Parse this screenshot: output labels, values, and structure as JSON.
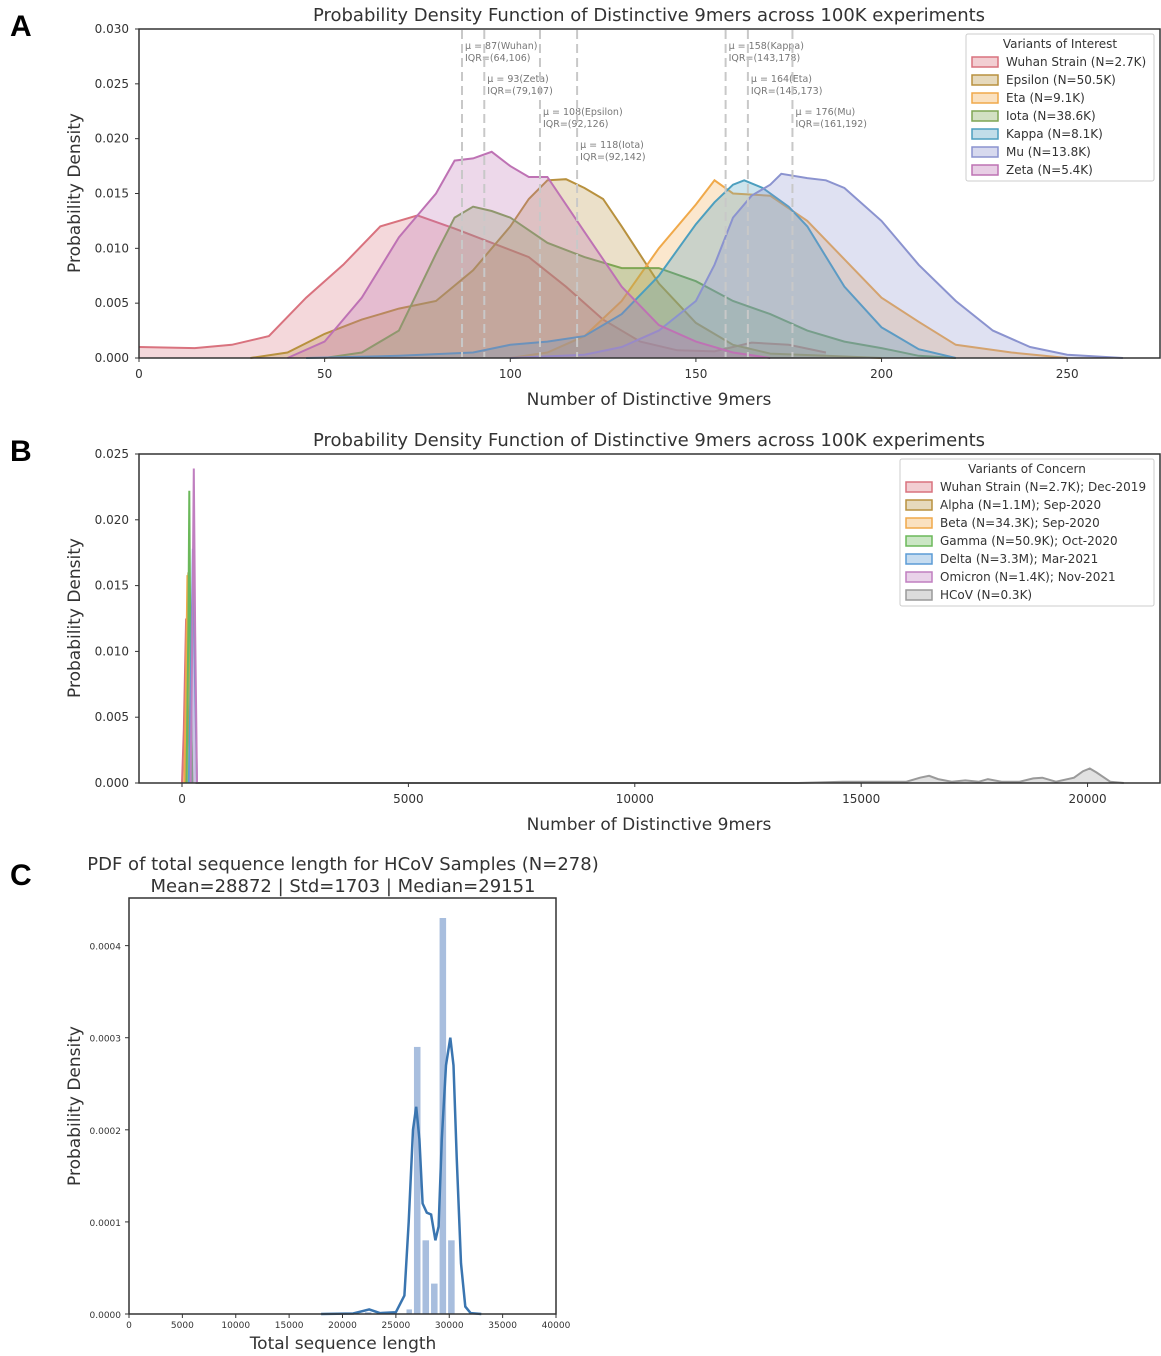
{
  "panels": [
    {
      "letter": "A"
    },
    {
      "letter": "B"
    },
    {
      "letter": "C"
    }
  ],
  "chart_data": [
    {
      "type": "area",
      "title": "Probability Density Function of Distinctive 9mers across 100K experiments",
      "xlabel": "Number of Distinctive 9mers",
      "ylabel": "Probability Density",
      "xlim": [
        0,
        275
      ],
      "ylim": [
        0,
        0.03
      ],
      "xticks": [
        0,
        50,
        100,
        150,
        200,
        250
      ],
      "yticks": [
        "0.000",
        "0.005",
        "0.010",
        "0.015",
        "0.020",
        "0.025",
        "0.030"
      ],
      "grid": false,
      "legend": {
        "title": "Variants of Interest",
        "position": "top-right",
        "entries": [
          {
            "label": "Wuhan Strain (N=2.7K)",
            "color": "#d9727e"
          },
          {
            "label": "Epsilon (N=50.5K)",
            "color": "#b8913e"
          },
          {
            "label": "Eta (N=9.1K)",
            "color": "#f0a94a"
          },
          {
            "label": "Iota (N=38.6K)",
            "color": "#7fa654"
          },
          {
            "label": "Kappa (N=8.1K)",
            "color": "#4c9fbf"
          },
          {
            "label": "Mu (N=13.8K)",
            "color": "#8b93cf"
          },
          {
            "label": "Zeta (N=5.4K)",
            "color": "#be72b4"
          }
        ]
      },
      "series": [
        {
          "label_ref": 0,
          "color": "#d9727e",
          "x": [
            0,
            15,
            25,
            35,
            45,
            55,
            65,
            75,
            85,
            95,
            105,
            115,
            125,
            135,
            145,
            155,
            165,
            175,
            185
          ],
          "y": [
            0.001,
            0.0009,
            0.0012,
            0.002,
            0.0055,
            0.0085,
            0.012,
            0.013,
            0.0118,
            0.0105,
            0.0092,
            0.0065,
            0.0035,
            0.0015,
            0.0007,
            0.0006,
            0.0014,
            0.0012,
            0.0005
          ]
        },
        {
          "label_ref": 1,
          "color": "#b8913e",
          "x": [
            30,
            40,
            50,
            60,
            70,
            80,
            90,
            100,
            105,
            110,
            115,
            120,
            125,
            130,
            140,
            150,
            160,
            170,
            185,
            200
          ],
          "y": [
            0,
            0.0005,
            0.0022,
            0.0035,
            0.0045,
            0.0052,
            0.008,
            0.012,
            0.0145,
            0.0162,
            0.0163,
            0.0155,
            0.0145,
            0.012,
            0.0068,
            0.0032,
            0.0012,
            0.0004,
            0.0002,
            0
          ]
        },
        {
          "label_ref": 2,
          "color": "#f0a94a",
          "x": [
            100,
            110,
            120,
            130,
            140,
            150,
            155,
            160,
            170,
            180,
            190,
            200,
            210,
            220,
            235,
            250
          ],
          "y": [
            0,
            0.0005,
            0.002,
            0.0052,
            0.01,
            0.014,
            0.0162,
            0.015,
            0.0148,
            0.0125,
            0.009,
            0.0055,
            0.0033,
            0.0012,
            0.0005,
            0
          ]
        },
        {
          "label_ref": 3,
          "color": "#7fa654",
          "x": [
            50,
            60,
            70,
            80,
            85,
            90,
            95,
            100,
            110,
            120,
            130,
            140,
            150,
            160,
            170,
            180,
            190,
            200,
            210,
            220
          ],
          "y": [
            0,
            0.0005,
            0.0025,
            0.0095,
            0.0128,
            0.0138,
            0.0134,
            0.0128,
            0.0105,
            0.0092,
            0.0082,
            0.0082,
            0.007,
            0.0052,
            0.004,
            0.0025,
            0.0015,
            0.0009,
            0.0002,
            0
          ]
        },
        {
          "label_ref": 4,
          "color": "#4c9fbf",
          "x": [
            45,
            70,
            90,
            100,
            110,
            120,
            130,
            140,
            150,
            155,
            160,
            163,
            168,
            175,
            180,
            190,
            200,
            210,
            220
          ],
          "y": [
            0,
            0.0002,
            0.0005,
            0.0012,
            0.0015,
            0.002,
            0.004,
            0.0075,
            0.0122,
            0.0142,
            0.0158,
            0.0162,
            0.0155,
            0.0138,
            0.012,
            0.0065,
            0.0028,
            0.0008,
            0
          ]
        },
        {
          "label_ref": 5,
          "color": "#8b93cf",
          "x": [
            100,
            120,
            130,
            140,
            150,
            155,
            160,
            165,
            170,
            173,
            180,
            185,
            190,
            200,
            210,
            220,
            230,
            240,
            250,
            265
          ],
          "y": [
            0,
            0.0003,
            0.001,
            0.0025,
            0.0052,
            0.0085,
            0.0128,
            0.0148,
            0.0158,
            0.0168,
            0.0164,
            0.0162,
            0.0155,
            0.0125,
            0.0085,
            0.0052,
            0.0025,
            0.001,
            0.0003,
            0
          ]
        },
        {
          "label_ref": 6,
          "color": "#be72b4",
          "x": [
            40,
            50,
            60,
            70,
            75,
            80,
            85,
            90,
            95,
            100,
            105,
            110,
            120,
            130,
            140,
            150,
            160,
            170
          ],
          "y": [
            0,
            0.0015,
            0.0055,
            0.011,
            0.013,
            0.015,
            0.018,
            0.0182,
            0.0188,
            0.0175,
            0.0165,
            0.0165,
            0.0115,
            0.0065,
            0.003,
            0.0015,
            0.0005,
            0
          ]
        }
      ],
      "annotations": [
        {
          "x": 87,
          "mean_text": "μ = 87(Wuhan)",
          "iqr_text": "IQR=(64,106)",
          "row": 0
        },
        {
          "x": 93,
          "mean_text": "μ = 93(Zeta)",
          "iqr_text": "IQR=(79,107)",
          "row": 1
        },
        {
          "x": 108,
          "mean_text": "μ = 108(Epsilon)",
          "iqr_text": "IQR=(92,126)",
          "row": 2
        },
        {
          "x": 118,
          "mean_text": "μ = 118(Iota)",
          "iqr_text": "IQR=(92,142)",
          "row": 3
        },
        {
          "x": 158,
          "mean_text": "μ = 158(Kappa)",
          "iqr_text": "IQR=(143,178)",
          "row": 0
        },
        {
          "x": 164,
          "mean_text": "μ = 164(Eta)",
          "iqr_text": "IQR=(146,173)",
          "row": 1
        },
        {
          "x": 176,
          "mean_text": "μ = 176(Mu)",
          "iqr_text": "IQR=(161,192)",
          "row": 2
        }
      ]
    },
    {
      "type": "area",
      "title": "Probability Density Function of Distinctive 9mers across 100K experiments",
      "xlabel": "Number of Distinctive 9mers",
      "ylabel": "Probability Density",
      "xlim": [
        -950,
        21600
      ],
      "ylim": [
        0,
        0.025
      ],
      "xticks": [
        0,
        5000,
        10000,
        15000,
        20000
      ],
      "yticks": [
        "0.000",
        "0.005",
        "0.010",
        "0.015",
        "0.020",
        "0.025"
      ],
      "grid": false,
      "legend": {
        "title": "Variants of Concern",
        "position": "top-right",
        "entries": [
          {
            "label": "Wuhan Strain (N=2.7K); Dec-2019",
            "color": "#d9727e"
          },
          {
            "label": "Alpha (N=1.1M); Sep-2020",
            "color": "#b8913e"
          },
          {
            "label": "Beta (N=34.3K); Sep-2020",
            "color": "#f0a94a"
          },
          {
            "label": "Gamma (N=50.9K); Oct-2020",
            "color": "#6bb85a"
          },
          {
            "label": "Delta (N=3.3M); Mar-2021",
            "color": "#5b9bd5"
          },
          {
            "label": "Omicron (N=1.4K); Nov-2021",
            "color": "#c07fc0"
          },
          {
            "label": "HCoV (N=0.3K)",
            "color": "#9a9a9a"
          }
        ]
      },
      "series": [
        {
          "label_ref": 0,
          "color": "#d9727e",
          "x": [
            0,
            40,
            90,
            140,
            200
          ],
          "y": [
            0,
            0.004,
            0.0125,
            0.004,
            0
          ]
        },
        {
          "label_ref": 1,
          "color": "#b8913e",
          "x": [
            60,
            100,
            140,
            180,
            230
          ],
          "y": [
            0,
            0.009,
            0.016,
            0.008,
            0
          ]
        },
        {
          "label_ref": 2,
          "color": "#f0a94a",
          "x": [
            50,
            90,
            120,
            160,
            210
          ],
          "y": [
            0,
            0.008,
            0.0158,
            0.008,
            0
          ]
        },
        {
          "label_ref": 3,
          "color": "#6bb85a",
          "x": [
            100,
            140,
            160,
            180,
            220
          ],
          "y": [
            0,
            0.012,
            0.0222,
            0.012,
            0
          ]
        },
        {
          "label_ref": 4,
          "color": "#5b9bd5",
          "x": [
            150,
            200,
            240,
            280,
            330
          ],
          "y": [
            0,
            0.009,
            0.0178,
            0.009,
            0
          ]
        },
        {
          "label_ref": 5,
          "color": "#c07fc0",
          "x": [
            190,
            230,
            260,
            290,
            330
          ],
          "y": [
            0,
            0.012,
            0.0239,
            0.012,
            0
          ]
        },
        {
          "label_ref": 6,
          "color": "#9a9a9a",
          "x": [
            300,
            13600,
            14600,
            16000,
            16300,
            16500,
            16700,
            17000,
            17300,
            17600,
            17800,
            18100,
            18500,
            18800,
            19000,
            19300,
            19700,
            19900,
            20050,
            20200,
            20500,
            20800
          ],
          "y": [
            0,
            0,
            0.0001,
            0.0001,
            0.0004,
            0.00055,
            0.0003,
            0.0001,
            0.0002,
            0.0001,
            0.0003,
            0.0001,
            0.0001,
            0.00035,
            0.0004,
            0.0001,
            0.0004,
            0.0009,
            0.0011,
            0.0008,
            0.0001,
            0
          ]
        }
      ]
    },
    {
      "type": "bar",
      "title": "PDF of total sequence length for HCoV Samples (N=278)",
      "subtitle": "Mean=28872 | Std=1703 | Median=29151",
      "xlabel": "Total sequence length",
      "ylabel": "Probability Density",
      "xlim": [
        0,
        40000
      ],
      "ylim": [
        0,
        0.00043
      ],
      "xticks": [
        0,
        5000,
        10000,
        15000,
        20000,
        25000,
        30000,
        35000,
        40000
      ],
      "yticks": [
        "0.0000",
        "0.0001",
        "0.0002",
        "0.0003",
        "0.0004"
      ],
      "grid": false,
      "bar_color": "#a8bede",
      "bins": [
        {
          "x0": 22000,
          "x1": 22800,
          "value": 2e-06
        },
        {
          "x0": 25900,
          "x1": 26600,
          "value": 5e-06
        },
        {
          "x0": 26600,
          "x1": 27400,
          "value": 0.00029
        },
        {
          "x0": 27400,
          "x1": 28200,
          "value": 8e-05
        },
        {
          "x0": 28200,
          "x1": 29000,
          "value": 3.3e-05
        },
        {
          "x0": 29000,
          "x1": 29800,
          "value": 0.00043
        },
        {
          "x0": 29800,
          "x1": 30600,
          "value": 8e-05
        }
      ],
      "kde": {
        "color": "#3a75b0",
        "x": [
          18000,
          21000,
          22500,
          23500,
          25000,
          25800,
          26200,
          26600,
          26900,
          27200,
          27500,
          27900,
          28300,
          28700,
          29000,
          29300,
          29700,
          30100,
          30400,
          30700,
          31100,
          31500,
          32000,
          33000
        ],
        "y": [
          0,
          5e-07,
          5e-06,
          1e-06,
          2e-06,
          2e-05,
          0.0001,
          0.0002,
          0.000225,
          0.00019,
          0.00012,
          0.00011,
          0.000108,
          8e-05,
          9.5e-05,
          0.00019,
          0.00027,
          0.0003,
          0.00027,
          0.00017,
          5.5e-05,
          8e-06,
          1e-06,
          0
        ]
      }
    }
  ]
}
